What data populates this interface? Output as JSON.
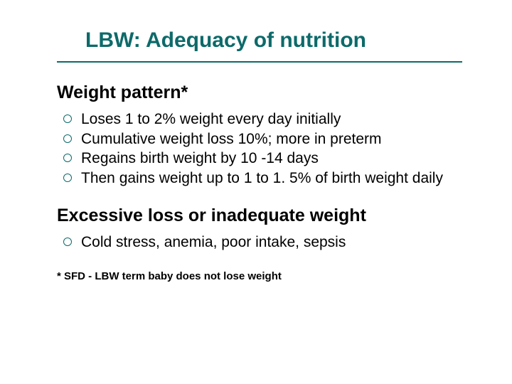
{
  "colors": {
    "title": "#0d6a6a",
    "divider": "#0d6a6a",
    "bullet_ring": "#0d6a6a",
    "text": "#000000",
    "background": "#ffffff"
  },
  "typography": {
    "title_fontsize": 30,
    "section_heading_fontsize": 25,
    "bullet_fontsize": 21,
    "footnote_fontsize": 15,
    "font_family": "Arial"
  },
  "title": "LBW: Adequacy of nutrition",
  "sections": [
    {
      "heading": "Weight pattern*",
      "items": [
        "Loses 1 to 2% weight every day initially",
        "Cumulative weight loss 10%; more in preterm",
        "Regains birth weight by 10 -14 days",
        "Then gains weight up to 1 to 1. 5% of birth weight daily"
      ]
    },
    {
      "heading": "Excessive loss or inadequate weight",
      "items": [
        "Cold stress, anemia, poor intake, sepsis"
      ]
    }
  ],
  "footnote": "* SFD - LBW term baby does not lose weight"
}
